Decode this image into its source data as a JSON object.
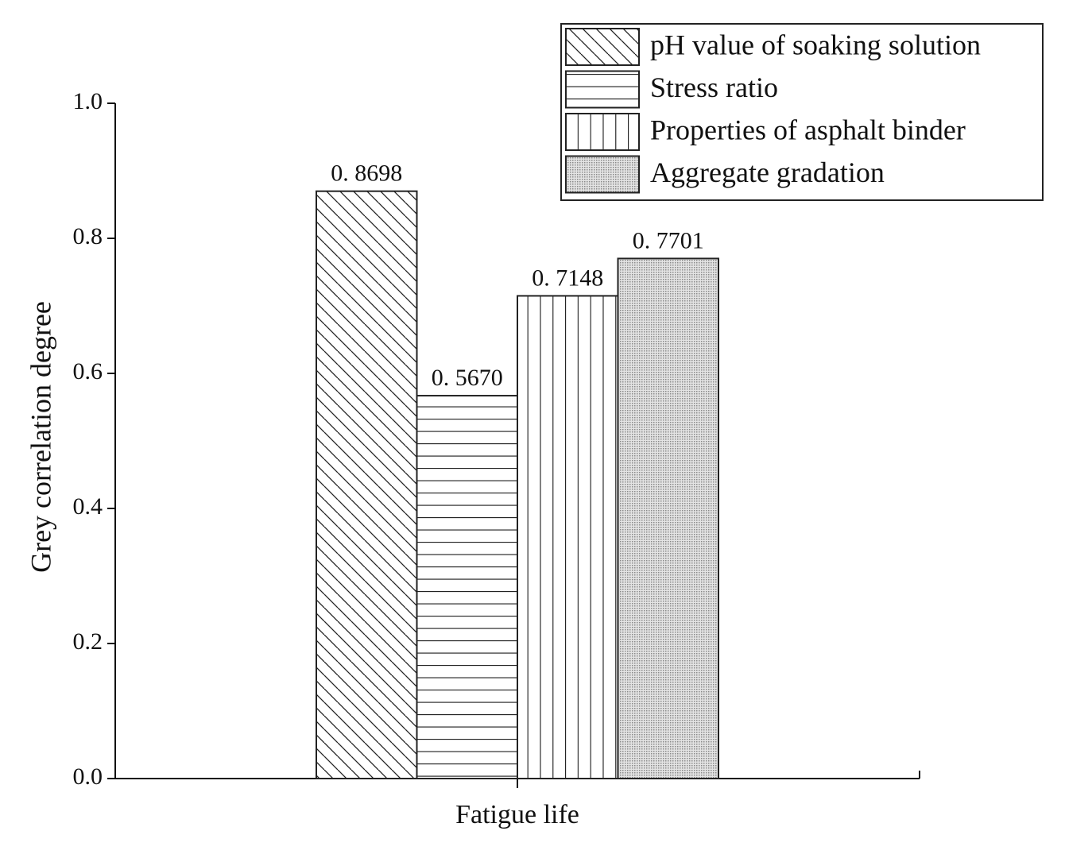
{
  "chart_data": {
    "type": "bar",
    "y_label": "Grey correlation degree",
    "categories": [
      "Fatigue life"
    ],
    "series": [
      {
        "name": "pH value of soaking solution",
        "color": "#222222",
        "pattern": "diagonal",
        "values": [
          0.8698
        ],
        "value_labels": [
          "0. 8698"
        ]
      },
      {
        "name": "Stress ratio",
        "color": "#222222",
        "pattern": "horizontal",
        "values": [
          0.567
        ],
        "value_labels": [
          "0. 5670"
        ]
      },
      {
        "name": "Properties of asphalt binder",
        "color": "#222222",
        "pattern": "vertical",
        "values": [
          0.7148
        ],
        "value_labels": [
          "0. 7148"
        ]
      },
      {
        "name": "Aggregate gradation",
        "color": "#8a8a8a",
        "pattern": "dots",
        "values": [
          0.7701
        ],
        "value_labels": [
          "0. 7701"
        ]
      }
    ],
    "ylim": [
      0,
      1
    ],
    "yticks": [
      {
        "value": 0,
        "label": "0.0"
      },
      0.2,
      0.4,
      0.6,
      0.8,
      {
        "value": 1,
        "label": "1.0"
      }
    ],
    "legend": "upper right"
  }
}
